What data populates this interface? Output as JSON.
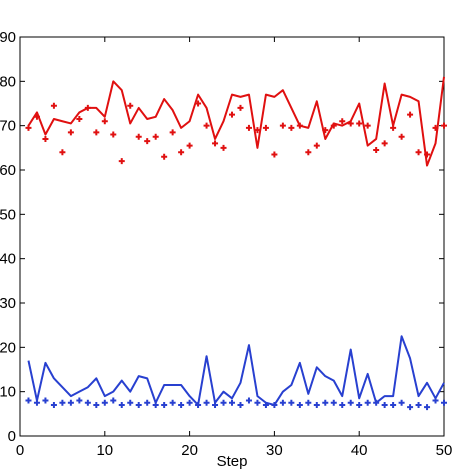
{
  "chart_data": {
    "type": "line",
    "x_label": "Step",
    "x": [
      1,
      2,
      3,
      4,
      5,
      6,
      7,
      8,
      9,
      10,
      11,
      12,
      13,
      14,
      15,
      16,
      17,
      18,
      19,
      20,
      21,
      22,
      23,
      24,
      25,
      26,
      27,
      28,
      29,
      30,
      31,
      32,
      33,
      34,
      35,
      36,
      37,
      38,
      39,
      40,
      41,
      42,
      43,
      44,
      45,
      46,
      47,
      48,
      49,
      50
    ],
    "series": [
      {
        "color": "#e01010",
        "mode": "line",
        "values": [
          70,
          73,
          68,
          71.5,
          71,
          70.5,
          73,
          74,
          74,
          72,
          80,
          78,
          70.5,
          74,
          71.5,
          72,
          76,
          73.5,
          69.5,
          71,
          77,
          74,
          67,
          71,
          77,
          76.5,
          77,
          65,
          77,
          76.5,
          78,
          74,
          70,
          69.5,
          75.5,
          67,
          70.5,
          70,
          71,
          75,
          65.5,
          67,
          79.5,
          70,
          77,
          76.5,
          75.5,
          61,
          66,
          81
        ]
      },
      {
        "color": "#e01010",
        "mode": "markers",
        "values": [
          69.5,
          72,
          67,
          74.5,
          64,
          68.5,
          71.5,
          74,
          68.5,
          71,
          68,
          62,
          74.5,
          67.5,
          66.5,
          67.5,
          63,
          68.5,
          64,
          65.5,
          75,
          70,
          66,
          65,
          72.5,
          74,
          69.5,
          69,
          69.5,
          63.5,
          70,
          69.5,
          70,
          64,
          65.5,
          69,
          70,
          71,
          70.5,
          70.5,
          70,
          64.5,
          66,
          69.5,
          67.5,
          72.5,
          64,
          63.5,
          69.5,
          70
        ]
      },
      {
        "color": "#2840d0",
        "mode": "line",
        "values": [
          17,
          8,
          16.5,
          13,
          11,
          9,
          10,
          11,
          13,
          9,
          10,
          12.5,
          10,
          13.5,
          13,
          7.5,
          11.5,
          11.5,
          11.5,
          9,
          7,
          18,
          7.5,
          10,
          8.5,
          12,
          20.5,
          9,
          7.5,
          7,
          10,
          11.5,
          16.5,
          9.5,
          15.5,
          13.5,
          12.5,
          9,
          19.5,
          8.5,
          14,
          7.5,
          9,
          9,
          22.5,
          17.5,
          9,
          12,
          8.5,
          12
        ]
      },
      {
        "color": "#2840d0",
        "mode": "markers",
        "values": [
          8,
          7.5,
          8,
          7,
          7.5,
          7.5,
          8,
          7.5,
          7,
          7.5,
          8,
          7,
          7.5,
          7,
          7.5,
          7,
          7,
          7.5,
          7,
          7.5,
          7,
          7.5,
          7,
          7.5,
          7.5,
          7,
          8,
          7.5,
          7,
          7,
          7.5,
          7.5,
          7,
          7.5,
          7,
          7.5,
          7.5,
          7,
          7.5,
          7,
          7.5,
          7.5,
          7,
          7,
          7.5,
          6.5,
          7,
          6.5,
          8,
          7.5
        ]
      }
    ],
    "xlim": [
      0,
      50
    ],
    "xticks": [
      0,
      10,
      20,
      30,
      40,
      50
    ],
    "ylim": [
      0,
      90
    ],
    "yticks": [
      0,
      10,
      20,
      30,
      40,
      50,
      60,
      70,
      80,
      90
    ],
    "grid": false
  }
}
